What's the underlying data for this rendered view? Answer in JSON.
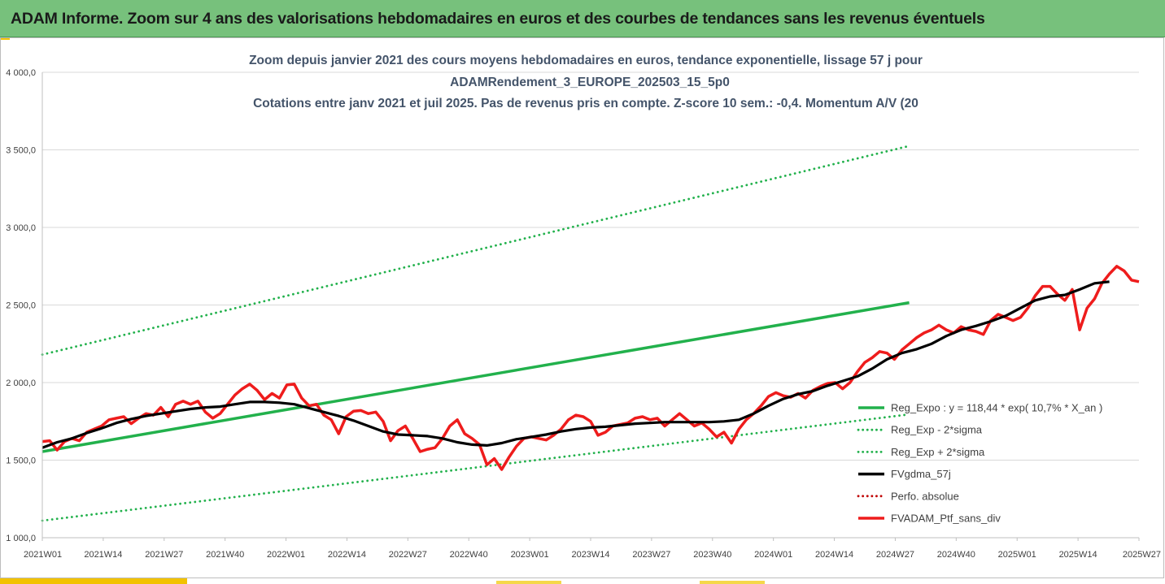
{
  "header": {
    "title": "ADAM Informe. Zoom sur 4 ans des valorisations hebdomadaires en euros et des courbes de tendances sans les revenus éventuels"
  },
  "colors": {
    "banner": "#77c17c",
    "regression": "#22b14c",
    "sigma_band": "#22b14c",
    "moving_average": "#000000",
    "portfolio": "#ee1c1c",
    "perfo_absolue": "#c00000",
    "title_text": "#44546a"
  },
  "chart_data": {
    "type": "line",
    "title_lines": [
      "Zoom depuis janvier 2021 des cours moyens hebdomadaires  en euros, tendance exponentielle, lissage 57 j pour",
      "ADAMRendement_3_EUROPE_202503_15_5p0",
      "Cotations entre janv 2021 et juil 2025. Pas de revenus pris en compte. Z-score 10 sem.: -0,4. Momentum A/V (20"
    ],
    "xlabel": "",
    "ylabel": "",
    "ylim": [
      1000,
      4000
    ],
    "y_ticks": [
      "1 000,0",
      "1 500,0",
      "2 000,0",
      "2 500,0",
      "3 000,0",
      "3 500,0",
      "4 000,0"
    ],
    "x_ticks": [
      "2021W01",
      "2021W14",
      "2021W27",
      "2021W40",
      "2022W01",
      "2022W14",
      "2022W27",
      "2022W40",
      "2023W01",
      "2023W14",
      "2023W27",
      "2023W40",
      "2024W01",
      "2024W14",
      "2024W27",
      "2024W40",
      "2025W01",
      "2025W14",
      "2025W27"
    ],
    "grid": "horizontal",
    "legend_position": "right",
    "series": [
      {
        "name": "Reg_Expo : y = 118,44 * exp( 10,7% *  X_an )",
        "style": "solid",
        "color": "#22b14c",
        "points": [
          [
            0,
            1555
          ],
          [
            234,
            2515
          ]
        ]
      },
      {
        "name": "Reg_Exp - 2*sigma",
        "style": "dotted",
        "color": "#22b14c",
        "points": [
          [
            0,
            1110
          ],
          [
            234,
            1795
          ]
        ]
      },
      {
        "name": "Reg_Exp + 2*sigma",
        "style": "dotted",
        "color": "#22b14c",
        "points": [
          [
            0,
            2180
          ],
          [
            234,
            3525
          ]
        ]
      },
      {
        "name": "FVgdma_57j",
        "style": "solid",
        "color": "#000000",
        "points": [
          [
            0,
            1580
          ],
          [
            4,
            1615
          ],
          [
            8,
            1640
          ],
          [
            12,
            1675
          ],
          [
            16,
            1705
          ],
          [
            20,
            1740
          ],
          [
            24,
            1765
          ],
          [
            28,
            1785
          ],
          [
            32,
            1800
          ],
          [
            36,
            1815
          ],
          [
            40,
            1830
          ],
          [
            44,
            1840
          ],
          [
            48,
            1845
          ],
          [
            52,
            1860
          ],
          [
            56,
            1875
          ],
          [
            60,
            1875
          ],
          [
            64,
            1870
          ],
          [
            68,
            1860
          ],
          [
            72,
            1835
          ],
          [
            76,
            1810
          ],
          [
            80,
            1785
          ],
          [
            84,
            1755
          ],
          [
            88,
            1720
          ],
          [
            92,
            1685
          ],
          [
            96,
            1665
          ],
          [
            100,
            1660
          ],
          [
            104,
            1655
          ],
          [
            108,
            1640
          ],
          [
            112,
            1615
          ],
          [
            116,
            1600
          ],
          [
            120,
            1595
          ],
          [
            124,
            1610
          ],
          [
            128,
            1635
          ],
          [
            132,
            1650
          ],
          [
            136,
            1665
          ],
          [
            140,
            1685
          ],
          [
            144,
            1700
          ],
          [
            148,
            1710
          ],
          [
            152,
            1715
          ],
          [
            156,
            1725
          ],
          [
            160,
            1735
          ],
          [
            164,
            1740
          ],
          [
            168,
            1745
          ],
          [
            172,
            1745
          ],
          [
            176,
            1745
          ],
          [
            180,
            1745
          ],
          [
            184,
            1750
          ],
          [
            188,
            1760
          ],
          [
            192,
            1800
          ],
          [
            196,
            1850
          ],
          [
            200,
            1895
          ],
          [
            204,
            1925
          ],
          [
            208,
            1945
          ],
          [
            212,
            1980
          ],
          [
            216,
            2010
          ],
          [
            220,
            2040
          ],
          [
            224,
            2090
          ],
          [
            228,
            2150
          ],
          [
            232,
            2190
          ],
          [
            236,
            2215
          ],
          [
            240,
            2250
          ],
          [
            244,
            2300
          ],
          [
            248,
            2340
          ],
          [
            252,
            2365
          ],
          [
            256,
            2395
          ],
          [
            260,
            2430
          ],
          [
            264,
            2480
          ],
          [
            268,
            2530
          ],
          [
            272,
            2555
          ],
          [
            276,
            2565
          ],
          [
            280,
            2600
          ],
          [
            284,
            2640
          ],
          [
            288,
            2650
          ]
        ]
      },
      {
        "name": "Perfo. absolue",
        "style": "dotted",
        "color": "#c00000",
        "points": []
      },
      {
        "name": "FVADAM_Ptf_sans_div",
        "style": "solid",
        "color": "#ee1c1c",
        "points": [
          [
            0,
            1620
          ],
          [
            2,
            1625
          ],
          [
            4,
            1565
          ],
          [
            6,
            1620
          ],
          [
            8,
            1640
          ],
          [
            10,
            1625
          ],
          [
            12,
            1680
          ],
          [
            14,
            1700
          ],
          [
            16,
            1720
          ],
          [
            18,
            1760
          ],
          [
            20,
            1770
          ],
          [
            22,
            1780
          ],
          [
            24,
            1735
          ],
          [
            26,
            1770
          ],
          [
            28,
            1800
          ],
          [
            30,
            1790
          ],
          [
            32,
            1840
          ],
          [
            34,
            1780
          ],
          [
            36,
            1860
          ],
          [
            38,
            1880
          ],
          [
            40,
            1860
          ],
          [
            42,
            1880
          ],
          [
            44,
            1810
          ],
          [
            46,
            1770
          ],
          [
            48,
            1800
          ],
          [
            50,
            1860
          ],
          [
            52,
            1920
          ],
          [
            54,
            1960
          ],
          [
            56,
            1990
          ],
          [
            58,
            1950
          ],
          [
            60,
            1890
          ],
          [
            62,
            1930
          ],
          [
            64,
            1900
          ],
          [
            66,
            1985
          ],
          [
            68,
            1990
          ],
          [
            70,
            1900
          ],
          [
            72,
            1850
          ],
          [
            74,
            1860
          ],
          [
            76,
            1790
          ],
          [
            78,
            1760
          ],
          [
            80,
            1670
          ],
          [
            82,
            1780
          ],
          [
            84,
            1815
          ],
          [
            86,
            1820
          ],
          [
            88,
            1800
          ],
          [
            90,
            1810
          ],
          [
            92,
            1750
          ],
          [
            94,
            1625
          ],
          [
            96,
            1690
          ],
          [
            98,
            1720
          ],
          [
            100,
            1640
          ],
          [
            102,
            1555
          ],
          [
            104,
            1570
          ],
          [
            106,
            1580
          ],
          [
            108,
            1640
          ],
          [
            110,
            1720
          ],
          [
            112,
            1760
          ],
          [
            114,
            1670
          ],
          [
            116,
            1640
          ],
          [
            118,
            1600
          ],
          [
            120,
            1470
          ],
          [
            122,
            1510
          ],
          [
            124,
            1440
          ],
          [
            126,
            1520
          ],
          [
            128,
            1590
          ],
          [
            130,
            1640
          ],
          [
            132,
            1650
          ],
          [
            134,
            1640
          ],
          [
            136,
            1630
          ],
          [
            138,
            1660
          ],
          [
            140,
            1700
          ],
          [
            142,
            1760
          ],
          [
            144,
            1790
          ],
          [
            146,
            1780
          ],
          [
            148,
            1750
          ],
          [
            150,
            1660
          ],
          [
            152,
            1680
          ],
          [
            154,
            1720
          ],
          [
            156,
            1730
          ],
          [
            158,
            1740
          ],
          [
            160,
            1770
          ],
          [
            162,
            1780
          ],
          [
            164,
            1760
          ],
          [
            166,
            1770
          ],
          [
            168,
            1720
          ],
          [
            170,
            1760
          ],
          [
            172,
            1800
          ],
          [
            174,
            1760
          ],
          [
            176,
            1720
          ],
          [
            178,
            1740
          ],
          [
            180,
            1700
          ],
          [
            182,
            1650
          ],
          [
            184,
            1680
          ],
          [
            186,
            1610
          ],
          [
            188,
            1700
          ],
          [
            190,
            1760
          ],
          [
            192,
            1800
          ],
          [
            194,
            1850
          ],
          [
            196,
            1910
          ],
          [
            198,
            1935
          ],
          [
            200,
            1915
          ],
          [
            202,
            1905
          ],
          [
            204,
            1930
          ],
          [
            206,
            1900
          ],
          [
            208,
            1950
          ],
          [
            210,
            1975
          ],
          [
            212,
            1995
          ],
          [
            214,
            2000
          ],
          [
            216,
            1960
          ],
          [
            218,
            2000
          ],
          [
            220,
            2070
          ],
          [
            222,
            2130
          ],
          [
            224,
            2160
          ],
          [
            226,
            2200
          ],
          [
            228,
            2190
          ],
          [
            230,
            2150
          ],
          [
            232,
            2210
          ],
          [
            234,
            2250
          ],
          [
            236,
            2290
          ],
          [
            238,
            2320
          ],
          [
            240,
            2340
          ],
          [
            242,
            2370
          ],
          [
            244,
            2340
          ],
          [
            246,
            2320
          ],
          [
            248,
            2360
          ],
          [
            250,
            2340
          ],
          [
            252,
            2330
          ],
          [
            254,
            2310
          ],
          [
            256,
            2400
          ],
          [
            258,
            2440
          ],
          [
            260,
            2420
          ],
          [
            262,
            2400
          ],
          [
            264,
            2420
          ],
          [
            266,
            2480
          ],
          [
            268,
            2560
          ],
          [
            270,
            2620
          ],
          [
            272,
            2620
          ],
          [
            274,
            2570
          ],
          [
            276,
            2530
          ],
          [
            278,
            2600
          ],
          [
            280,
            2340
          ],
          [
            282,
            2480
          ],
          [
            284,
            2540
          ],
          [
            286,
            2640
          ],
          [
            288,
            2700
          ],
          [
            290,
            2750
          ],
          [
            292,
            2720
          ],
          [
            294,
            2660
          ],
          [
            296,
            2650
          ]
        ]
      }
    ]
  }
}
